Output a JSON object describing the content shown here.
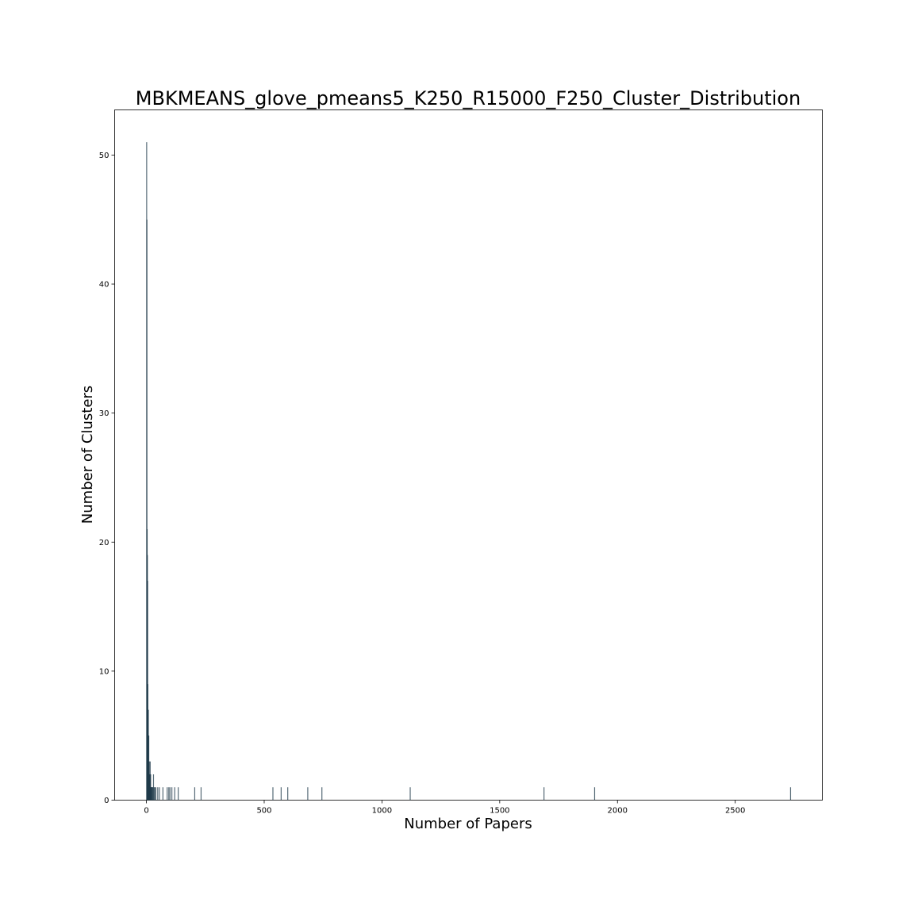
{
  "chart_data": {
    "type": "bar",
    "title": "MBKMEANS_glove_pmeans5_K250_R15000_F250_Cluster_Distribution",
    "xlabel": "Number of Papers",
    "ylabel": "Number of Clusters",
    "xlim": [
      -135,
      2870
    ],
    "ylim": [
      0,
      53.5
    ],
    "xticks": [
      0,
      500,
      1000,
      1500,
      2000,
      2500
    ],
    "yticks": [
      0,
      10,
      20,
      30,
      40,
      50
    ],
    "grid": false,
    "legend": "none",
    "bar_color": "#1f3a4a",
    "x": [
      1,
      2,
      3,
      4,
      5,
      6,
      7,
      8,
      9,
      10,
      11,
      12,
      13,
      14,
      15,
      16,
      17,
      18,
      19,
      20,
      21,
      22,
      24,
      26,
      28,
      30,
      33,
      36,
      40,
      48,
      55,
      70,
      88,
      95,
      100,
      108,
      120,
      135,
      205,
      232,
      537,
      572,
      600,
      685,
      745,
      1120,
      1688,
      1903,
      2735
    ],
    "values": [
      51,
      45,
      21,
      19,
      17,
      9,
      7,
      7,
      5,
      5,
      3,
      3,
      2,
      2,
      2,
      3,
      1,
      2,
      1,
      1,
      1,
      1,
      1,
      1,
      1,
      2,
      1,
      1,
      1,
      1,
      1,
      1,
      1,
      1,
      1,
      1,
      1,
      1,
      1,
      1,
      1,
      1,
      1,
      1,
      1,
      1,
      1,
      1,
      1
    ]
  }
}
